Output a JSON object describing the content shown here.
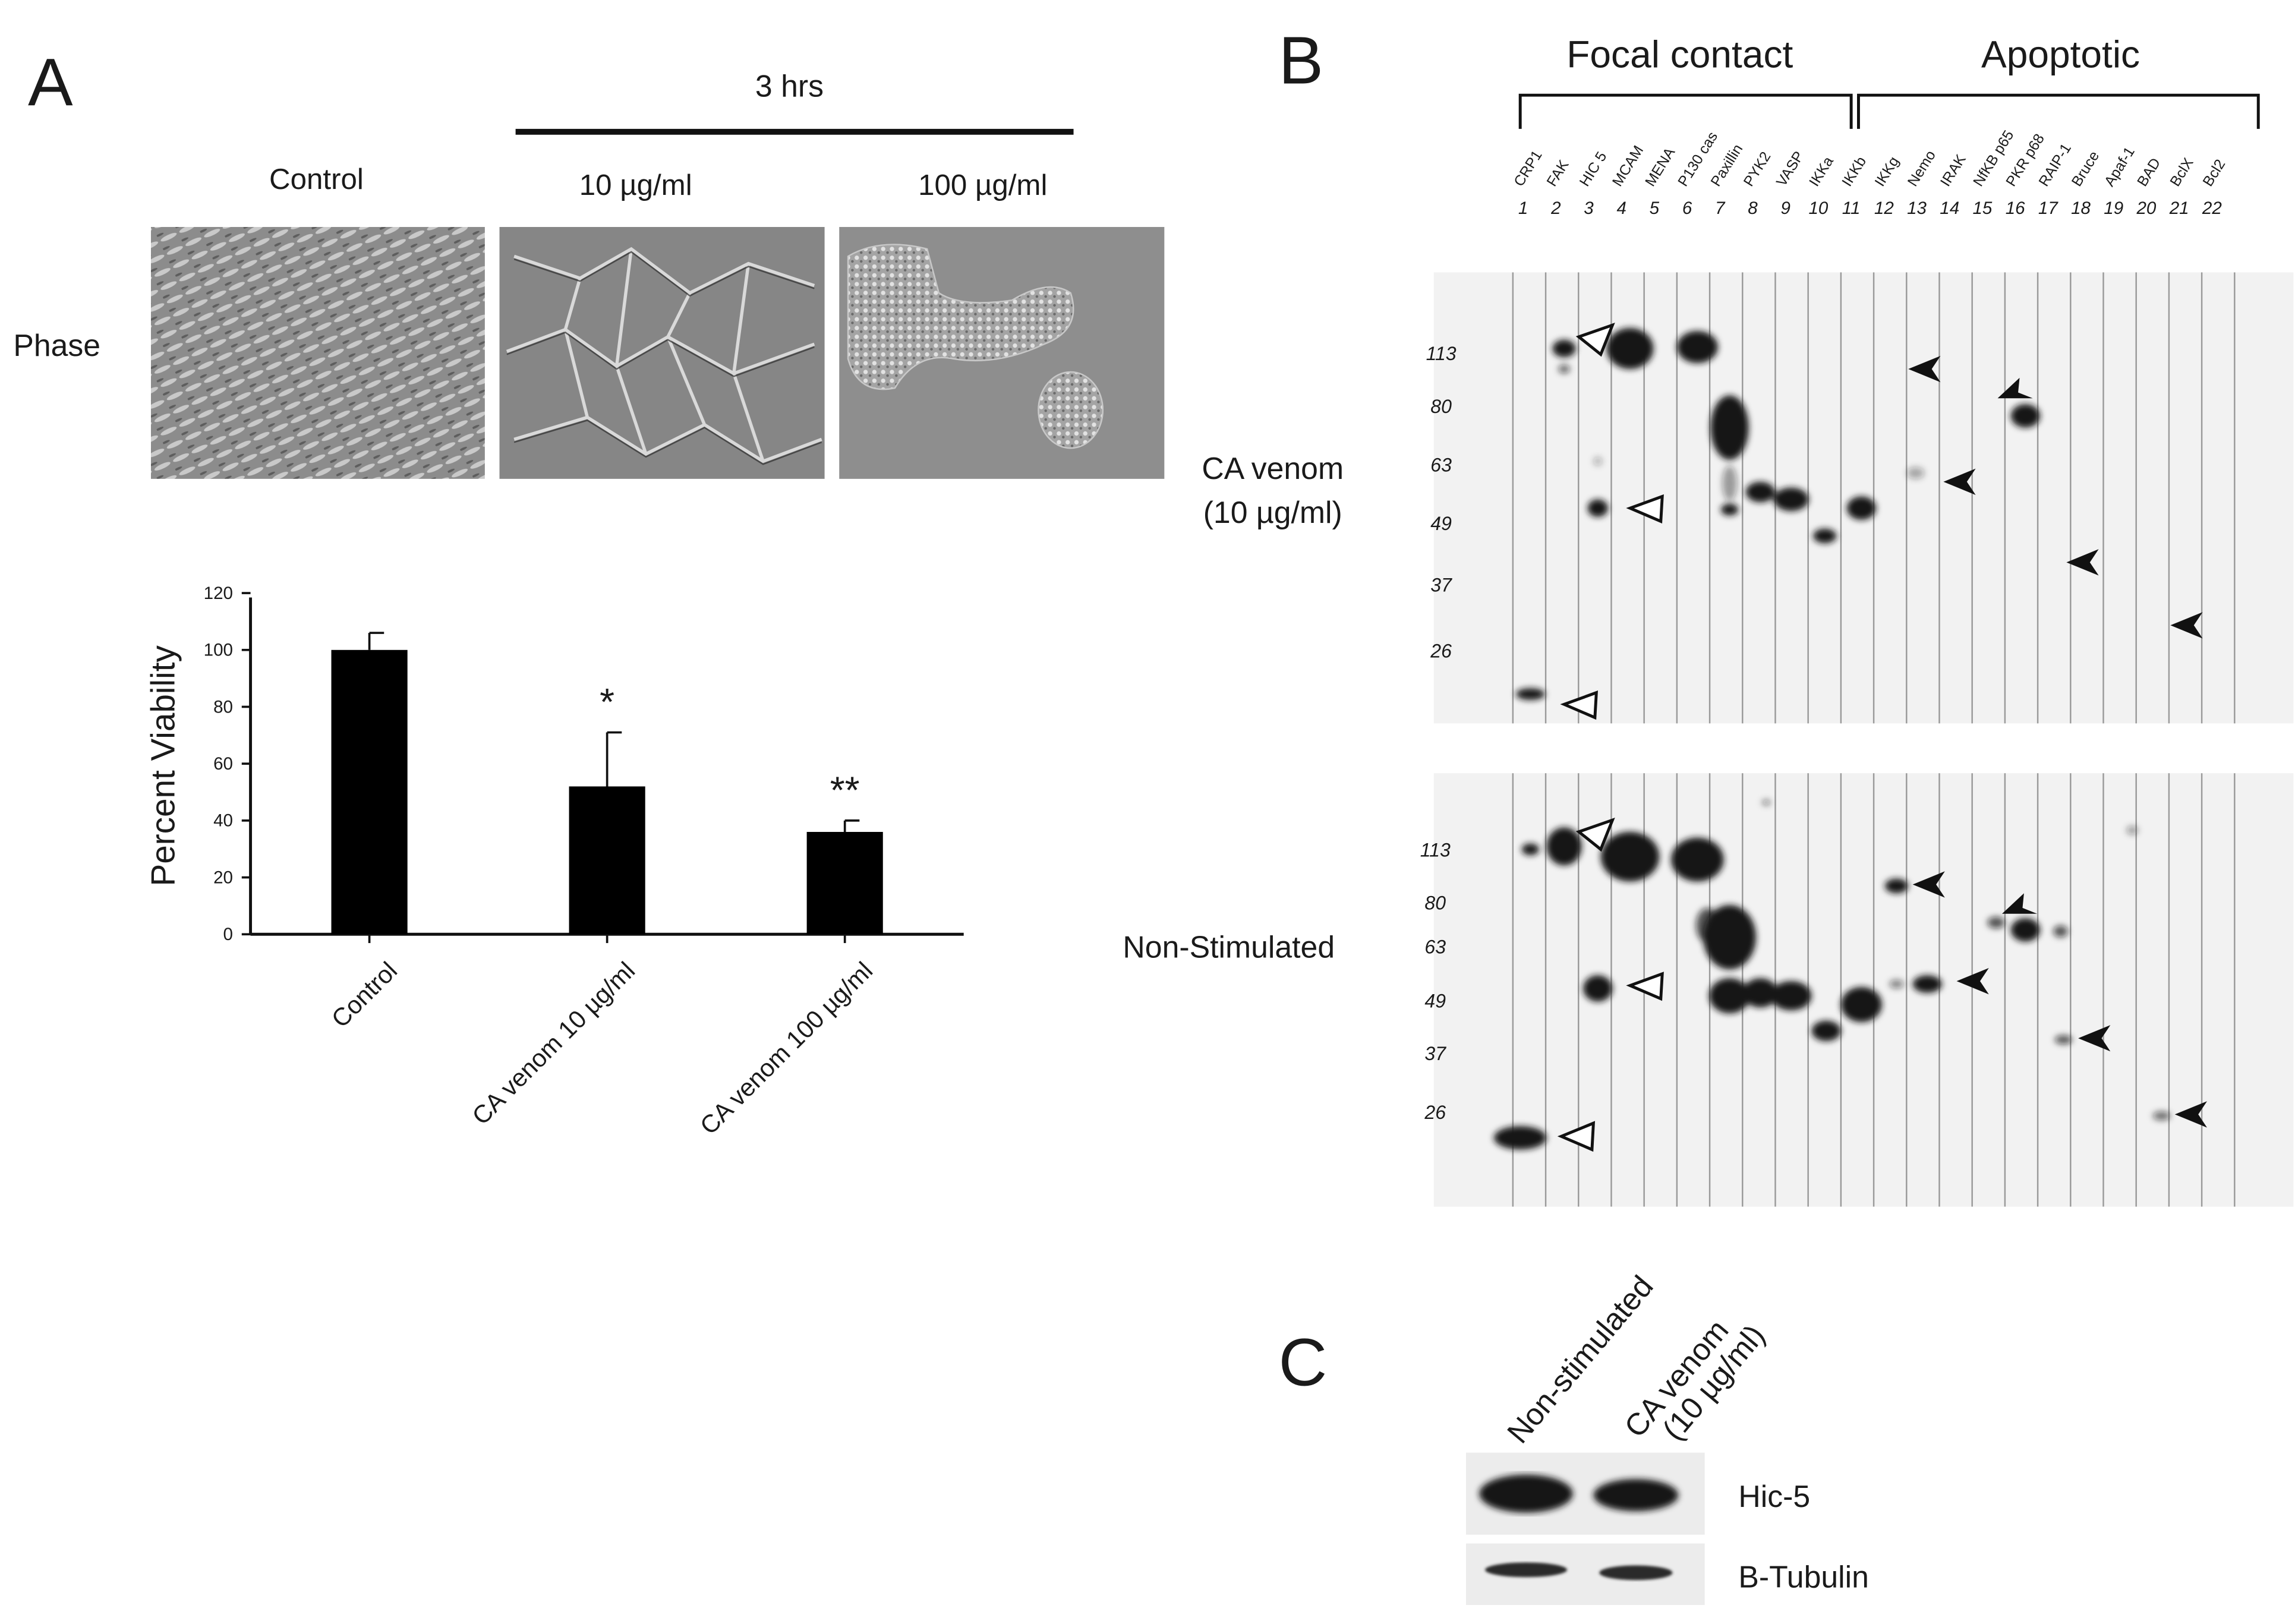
{
  "panel_a": {
    "letter": "A",
    "time_header": "3 hrs",
    "conditions": [
      "Control",
      "10 µg/ml",
      "100 µg/ml"
    ],
    "row_label": "Phase",
    "chart": {
      "ylabel": "Percent Viability",
      "significance": [
        "",
        "*",
        "**"
      ]
    }
  },
  "panel_b": {
    "letter": "B",
    "group_focal": "Focal contact",
    "group_apoptotic": "Apoptotic",
    "antibodies": [
      "CRP1",
      "FAK",
      "HIC 5",
      "MCAM",
      "MENA",
      "P130 cas",
      "Paxillin",
      "PYK2",
      "VASP",
      "IKKa",
      "IKKb",
      "IKKg",
      "Nemo",
      "IRAK",
      "NfKB p65",
      "PKR p68",
      "RAIP-1",
      "Bruce",
      "Apaf-1",
      "BAD",
      "BclX",
      "Bcl2"
    ],
    "lane_numbers": [
      "1",
      "2",
      "3",
      "4",
      "5",
      "6",
      "7",
      "8",
      "9",
      "10",
      "11",
      "12",
      "13",
      "14",
      "15",
      "16",
      "17",
      "18",
      "19",
      "20",
      "21",
      "22"
    ],
    "mw_markers_top": [
      "113",
      "80",
      "63",
      "49",
      "37",
      "26"
    ],
    "mw_markers_bottom": [
      "113",
      "80",
      "63",
      "49",
      "37",
      "26"
    ],
    "blot_top_label_line1": "CA venom",
    "blot_top_label_line2": "(10 µg/ml)",
    "blot_bottom_label": "Non-Stimulated"
  },
  "panel_c": {
    "letter": "C",
    "lane_1": "Non-stimulated",
    "lane_2_line1": "CA venom",
    "lane_2_line2": "(10 µg/ml)",
    "band_1": "Hic-5",
    "band_2": "B-Tubulin"
  },
  "chart_data": {
    "type": "bar",
    "categories": [
      "Control",
      "CA venom 10 µg/ml",
      "CA venom 100 µg/ml"
    ],
    "values": [
      100,
      52,
      36
    ],
    "errors": [
      6,
      19,
      4
    ],
    "ylabel": "Percent Viability",
    "ylim": [
      0,
      120
    ],
    "yticks": [
      0,
      20,
      40,
      60,
      80,
      100,
      120
    ],
    "grid": false,
    "bar_color": "#000000"
  }
}
